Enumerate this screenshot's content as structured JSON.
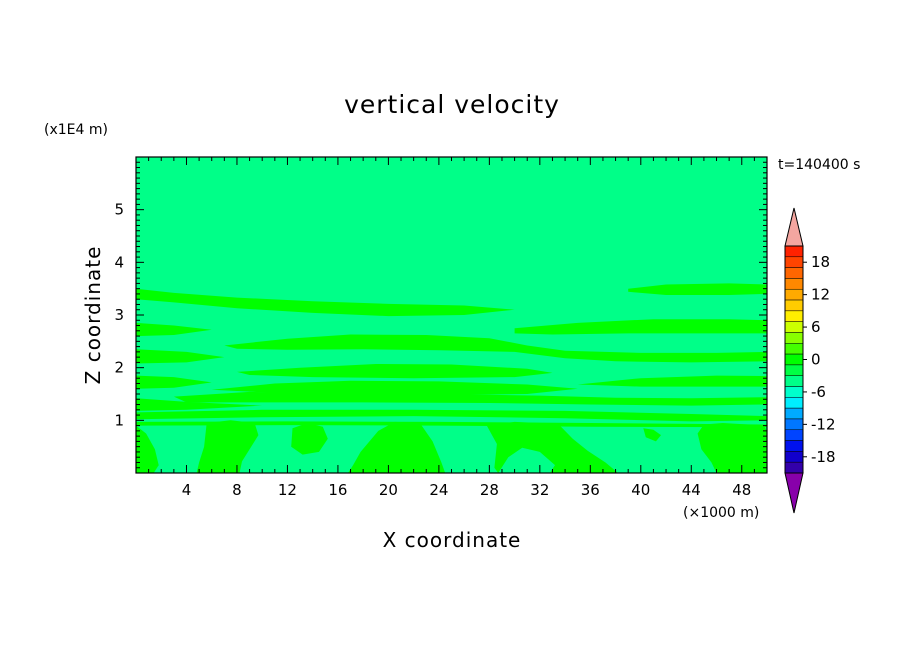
{
  "chart_data": {
    "type": "heatmap",
    "title": "vertical velocity",
    "xlabel": "X coordinate",
    "ylabel": "Z coordinate",
    "x_unit": "(×1000 m)",
    "y_unit": "(x1E4 m)",
    "time_label": "t=140400 s",
    "xlim": [
      0,
      50
    ],
    "ylim": [
      0,
      6
    ],
    "x_ticks": [
      4,
      8,
      12,
      16,
      20,
      24,
      28,
      32,
      36,
      40,
      44,
      48
    ],
    "y_ticks": [
      1,
      2,
      3,
      4,
      5
    ],
    "background_value_color": "#00ff88",
    "positive_region_color": "#00ff00",
    "regions": [
      {
        "name": "band-3.4",
        "points": [
          [
            0,
            3.5
          ],
          [
            3,
            3.42
          ],
          [
            8,
            3.33
          ],
          [
            14,
            3.26
          ],
          [
            20,
            3.21
          ],
          [
            26,
            3.18
          ],
          [
            30,
            3.1
          ],
          [
            26,
            3.0
          ],
          [
            20,
            2.98
          ],
          [
            14,
            3.04
          ],
          [
            8,
            3.13
          ],
          [
            3,
            3.24
          ],
          [
            0,
            3.3
          ]
        ]
      },
      {
        "name": "band-3.5-right",
        "points": [
          [
            39,
            3.5
          ],
          [
            42,
            3.58
          ],
          [
            47,
            3.6
          ],
          [
            50,
            3.58
          ],
          [
            50,
            3.4
          ],
          [
            47,
            3.38
          ],
          [
            42,
            3.38
          ],
          [
            39,
            3.44
          ]
        ]
      },
      {
        "name": "band-2.75-left",
        "points": [
          [
            0,
            2.85
          ],
          [
            3,
            2.8
          ],
          [
            6,
            2.72
          ],
          [
            3,
            2.62
          ],
          [
            0,
            2.6
          ]
        ]
      },
      {
        "name": "band-2.8-right",
        "points": [
          [
            30,
            2.75
          ],
          [
            35,
            2.85
          ],
          [
            41,
            2.92
          ],
          [
            47,
            2.92
          ],
          [
            50,
            2.9
          ],
          [
            50,
            2.65
          ],
          [
            45,
            2.65
          ],
          [
            39,
            2.65
          ],
          [
            33,
            2.63
          ],
          [
            30,
            2.65
          ]
        ]
      },
      {
        "name": "band-2.45",
        "points": [
          [
            7,
            2.42
          ],
          [
            12,
            2.55
          ],
          [
            17,
            2.63
          ],
          [
            23,
            2.62
          ],
          [
            28,
            2.56
          ],
          [
            31,
            2.42
          ],
          [
            34,
            2.32
          ],
          [
            40,
            2.28
          ],
          [
            46,
            2.28
          ],
          [
            50,
            2.3
          ],
          [
            50,
            2.12
          ],
          [
            44,
            2.1
          ],
          [
            38,
            2.12
          ],
          [
            34,
            2.18
          ],
          [
            30,
            2.3
          ],
          [
            24,
            2.33
          ],
          [
            18,
            2.35
          ],
          [
            12,
            2.34
          ],
          [
            8,
            2.36
          ]
        ]
      },
      {
        "name": "band-2.2-left",
        "points": [
          [
            0,
            2.35
          ],
          [
            4,
            2.3
          ],
          [
            7,
            2.2
          ],
          [
            4,
            2.1
          ],
          [
            0,
            2.08
          ]
        ]
      },
      {
        "name": "band-1.95",
        "points": [
          [
            8,
            1.92
          ],
          [
            13,
            2.0
          ],
          [
            19,
            2.07
          ],
          [
            25,
            2.06
          ],
          [
            31,
            1.98
          ],
          [
            33,
            1.9
          ],
          [
            30,
            1.82
          ],
          [
            22,
            1.8
          ],
          [
            14,
            1.82
          ],
          [
            9,
            1.86
          ]
        ]
      },
      {
        "name": "band-1.75-left",
        "points": [
          [
            0,
            1.85
          ],
          [
            3,
            1.82
          ],
          [
            6,
            1.72
          ],
          [
            3,
            1.62
          ],
          [
            0,
            1.6
          ]
        ]
      },
      {
        "name": "band-1.7",
        "points": [
          [
            6,
            1.58
          ],
          [
            11,
            1.7
          ],
          [
            17,
            1.75
          ],
          [
            24,
            1.74
          ],
          [
            31,
            1.68
          ],
          [
            35,
            1.6
          ],
          [
            31,
            1.5
          ],
          [
            24,
            1.48
          ],
          [
            17,
            1.5
          ],
          [
            11,
            1.52
          ]
        ]
      },
      {
        "name": "band-1.75-right",
        "points": [
          [
            35,
            1.68
          ],
          [
            40,
            1.8
          ],
          [
            46,
            1.85
          ],
          [
            50,
            1.84
          ],
          [
            50,
            1.64
          ],
          [
            45,
            1.64
          ],
          [
            40,
            1.64
          ]
        ]
      },
      {
        "name": "band-1.5",
        "points": [
          [
            3,
            1.45
          ],
          [
            9,
            1.54
          ],
          [
            16,
            1.52
          ],
          [
            24,
            1.5
          ],
          [
            32,
            1.47
          ],
          [
            38,
            1.43
          ],
          [
            44,
            1.42
          ],
          [
            50,
            1.44
          ],
          [
            50,
            1.3
          ],
          [
            44,
            1.28
          ],
          [
            36,
            1.3
          ],
          [
            28,
            1.33
          ],
          [
            18,
            1.34
          ],
          [
            10,
            1.34
          ],
          [
            4,
            1.34
          ]
        ]
      },
      {
        "name": "band-1.3-left",
        "points": [
          [
            0,
            1.42
          ],
          [
            4,
            1.35
          ],
          [
            10,
            1.28
          ],
          [
            4,
            1.2
          ],
          [
            0,
            1.18
          ]
        ]
      },
      {
        "name": "band-1.15",
        "points": [
          [
            0,
            1.15
          ],
          [
            10,
            1.2
          ],
          [
            22,
            1.2
          ],
          [
            34,
            1.18
          ],
          [
            44,
            1.12
          ],
          [
            50,
            1.08
          ],
          [
            50,
            1.0
          ],
          [
            44,
            0.98
          ],
          [
            34,
            1.04
          ],
          [
            22,
            1.08
          ],
          [
            10,
            1.06
          ],
          [
            0,
            1.02
          ]
        ]
      },
      {
        "name": "band-0.92",
        "points": [
          [
            0,
            0.97
          ],
          [
            12,
            0.98
          ],
          [
            24,
            0.97
          ],
          [
            36,
            0.95
          ],
          [
            50,
            0.92
          ],
          [
            50,
            0.87
          ],
          [
            36,
            0.88
          ],
          [
            24,
            0.9
          ],
          [
            12,
            0.91
          ],
          [
            0,
            0.9
          ]
        ]
      },
      {
        "name": "blob-x0",
        "points": [
          [
            0,
            0.9
          ],
          [
            0.8,
            0.75
          ],
          [
            1.5,
            0.45
          ],
          [
            1.8,
            0.15
          ],
          [
            1.4,
            0
          ],
          [
            0,
            0
          ]
        ]
      },
      {
        "name": "blob-x6",
        "points": [
          [
            5.6,
            0.95
          ],
          [
            7.5,
            1.0
          ],
          [
            9.4,
            0.95
          ],
          [
            9.7,
            0.72
          ],
          [
            9.0,
            0.45
          ],
          [
            8.4,
            0.22
          ],
          [
            8.2,
            0
          ],
          [
            4.8,
            0
          ],
          [
            5.0,
            0.2
          ],
          [
            5.4,
            0.5
          ]
        ]
      },
      {
        "name": "blob-x14",
        "points": [
          [
            12.4,
            0.85
          ],
          [
            13.6,
            0.95
          ],
          [
            14.8,
            0.88
          ],
          [
            15.2,
            0.65
          ],
          [
            14.5,
            0.4
          ],
          [
            13.2,
            0.35
          ],
          [
            12.3,
            0.5
          ]
        ]
      },
      {
        "name": "blob-x21",
        "points": [
          [
            17.8,
            0.4
          ],
          [
            19.2,
            0.8
          ],
          [
            20.5,
            0.97
          ],
          [
            22.5,
            0.95
          ],
          [
            23.5,
            0.6
          ],
          [
            24.2,
            0.2
          ],
          [
            24.5,
            0
          ],
          [
            16.8,
            0
          ],
          [
            17.2,
            0.15
          ]
        ]
      },
      {
        "name": "blob-x32",
        "points": [
          [
            27.8,
            0.9
          ],
          [
            30.0,
            0.97
          ],
          [
            32.0,
            0.95
          ],
          [
            33.5,
            0.92
          ],
          [
            34.6,
            0.65
          ],
          [
            35.8,
            0.42
          ],
          [
            37.2,
            0.2
          ],
          [
            38.2,
            0
          ],
          [
            32.8,
            0
          ],
          [
            33.2,
            0.15
          ],
          [
            32.0,
            0.4
          ],
          [
            30.6,
            0.48
          ],
          [
            29.5,
            0.3
          ],
          [
            28.7,
            0
          ],
          [
            28.4,
            0.1
          ],
          [
            28.6,
            0.55
          ]
        ]
      },
      {
        "name": "blob-x35",
        "points": [
          [
            35.4,
            0.06
          ],
          [
            36.0,
            0.12
          ],
          [
            36.4,
            0.05
          ],
          [
            36.2,
            0
          ],
          [
            35.5,
            0
          ]
        ]
      },
      {
        "name": "blob-x41",
        "points": [
          [
            40.2,
            0.85
          ],
          [
            41.0,
            0.82
          ],
          [
            41.6,
            0.72
          ],
          [
            41.2,
            0.6
          ],
          [
            40.4,
            0.68
          ]
        ]
      },
      {
        "name": "blob-x47",
        "points": [
          [
            44.5,
            0.75
          ],
          [
            45.0,
            0.92
          ],
          [
            46.5,
            0.95
          ],
          [
            48.5,
            0.92
          ],
          [
            49.8,
            0.88
          ],
          [
            50,
            0.8
          ],
          [
            50,
            0
          ],
          [
            46.0,
            0
          ],
          [
            45.6,
            0.2
          ],
          [
            44.8,
            0.45
          ]
        ]
      }
    ],
    "colorbar": {
      "labels": [
        "18",
        "12",
        "6",
        "0",
        "-6",
        "-12",
        "-18"
      ],
      "label_values": [
        18,
        12,
        6,
        0,
        -6,
        -12,
        -18
      ],
      "vmin": -21,
      "vmax": 21,
      "top_extend_color": "#f4a6a0",
      "bottom_extend_color": "#8800aa",
      "colors_top_to_bottom": [
        "#ff2200",
        "#ff4400",
        "#ff6600",
        "#ff8800",
        "#ffaa00",
        "#ffcc00",
        "#ffee00",
        "#ccff00",
        "#88ff00",
        "#44ff00",
        "#00ff00",
        "#00ff44",
        "#00ff88",
        "#00ffcc",
        "#00eeff",
        "#00aaff",
        "#0077ff",
        "#0044ff",
        "#0011ee",
        "#1100cc",
        "#3300aa"
      ]
    }
  }
}
